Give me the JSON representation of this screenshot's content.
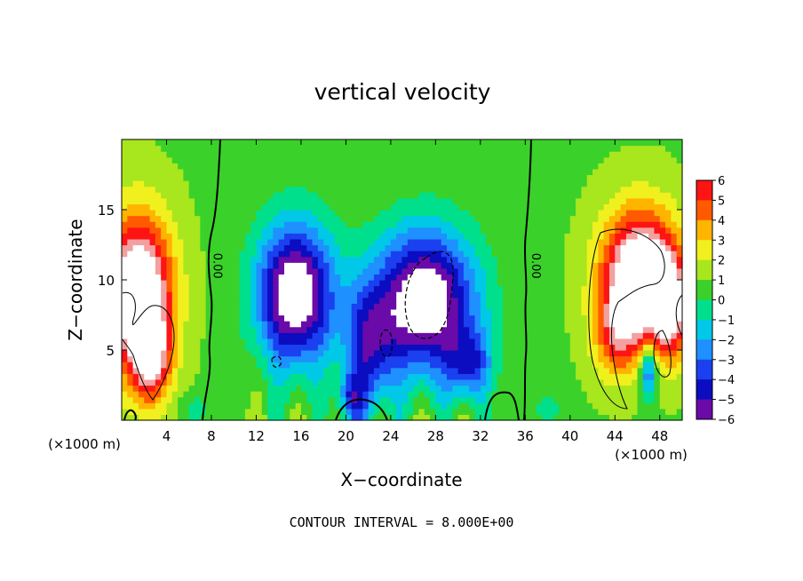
{
  "chart_data": {
    "type": "heatmap",
    "title": "vertical velocity",
    "xlabel": "X−coordinate",
    "ylabel": "Z−coordinate",
    "x_unit_left": "(×1000 m)",
    "x_unit_right": "(×1000 m)",
    "footer": "CONTOUR INTERVAL = 8.000E+00",
    "xlim": [
      0,
      50
    ],
    "ylim": [
      0,
      20
    ],
    "x_ticks": [
      {
        "value": 4,
        "label": "4"
      },
      {
        "value": 8,
        "label": "8"
      },
      {
        "value": 12,
        "label": "12"
      },
      {
        "value": 16,
        "label": "16"
      },
      {
        "value": 20,
        "label": "20"
      },
      {
        "value": 24,
        "label": "24"
      },
      {
        "value": 28,
        "label": "28"
      },
      {
        "value": 32,
        "label": "32"
      },
      {
        "value": 36,
        "label": "36"
      },
      {
        "value": 40,
        "label": "40"
      },
      {
        "value": 44,
        "label": "44"
      },
      {
        "value": 48,
        "label": "48"
      }
    ],
    "y_ticks": [
      {
        "value": 5,
        "label": "5"
      },
      {
        "value": 10,
        "label": "10"
      },
      {
        "value": 15,
        "label": "15"
      }
    ],
    "colorbar": {
      "min": -6,
      "max": 6,
      "tick_values": [
        6,
        5,
        4,
        3,
        2,
        1,
        0,
        -1,
        -2,
        -3,
        -4,
        -5,
        -6
      ],
      "tick_labels": [
        "6",
        "5",
        "4",
        "3",
        "2",
        "1",
        "0",
        "−1",
        "−2",
        "−3",
        "−4",
        "−5",
        "−6"
      ],
      "stops": [
        {
          "v": -6,
          "c": "#6a0aa8"
        },
        {
          "v": -5,
          "c": "#0c0cc0"
        },
        {
          "v": -4,
          "c": "#1a40f0"
        },
        {
          "v": -3,
          "c": "#1e90ff"
        },
        {
          "v": -2,
          "c": "#00c8e6"
        },
        {
          "v": -1,
          "c": "#00e08c"
        },
        {
          "v": 0,
          "c": "#3ad12a"
        },
        {
          "v": 1,
          "c": "#a8e61e"
        },
        {
          "v": 2,
          "c": "#f0f01e"
        },
        {
          "v": 3,
          "c": "#ffb400"
        },
        {
          "v": 4,
          "c": "#ff5a00"
        },
        {
          "v": 5,
          "c": "#ff1414"
        },
        {
          "v": 6,
          "c": "#f4a0a0"
        }
      ]
    },
    "contour_labels": [
      {
        "text": "0.00",
        "x": 8.2,
        "y": 11.0
      },
      {
        "text": "0.00",
        "x": 36.6,
        "y": 11.0
      }
    ],
    "features": [
      {
        "kind": "updraft",
        "x": 1.5,
        "z": 9.0,
        "sx": 3.0,
        "sz": 5.5,
        "amp": 9
      },
      {
        "kind": "updraft",
        "x": 2.6,
        "z": 4.5,
        "sx": 1.7,
        "sz": 3.2,
        "amp": 5
      },
      {
        "kind": "updraft",
        "x": 46.3,
        "z": 10.0,
        "sx": 3.4,
        "sz": 4.8,
        "amp": 9.5
      },
      {
        "kind": "updraft",
        "x": 44.0,
        "z": 6.0,
        "sx": 2.0,
        "sz": 3.0,
        "amp": 3
      },
      {
        "kind": "updraft",
        "x": 49.0,
        "z": 8.0,
        "sx": 1.5,
        "sz": 3.5,
        "amp": 5
      },
      {
        "kind": "downdraft",
        "x": 15.5,
        "z": 9.0,
        "sx": 3.4,
        "sz": 5.0,
        "amp": -8.5
      },
      {
        "kind": "downdraft",
        "x": 27.0,
        "z": 8.5,
        "sx": 4.5,
        "sz": 5.0,
        "amp": -8.5
      },
      {
        "kind": "downdraft",
        "x": 22.0,
        "z": 5.0,
        "sx": 2.2,
        "sz": 4.5,
        "amp": -4.5
      },
      {
        "kind": "downdraft",
        "x": 20.5,
        "z": 1.5,
        "sx": 1.2,
        "sz": 1.8,
        "amp": -3.5
      },
      {
        "kind": "downdraft",
        "x": 31.0,
        "z": 4.0,
        "sx": 2.0,
        "sz": 2.5,
        "amp": -4
      },
      {
        "kind": "downdraft",
        "x": 47.0,
        "z": 3.5,
        "sx": 0.8,
        "sz": 2.0,
        "amp": -5
      },
      {
        "kind": "downdraft",
        "x": 6.5,
        "z": 0.8,
        "sx": 1.2,
        "sz": 1.0,
        "amp": -1.5
      },
      {
        "kind": "downdraft",
        "x": 38.0,
        "z": 1.0,
        "sx": 1.0,
        "sz": 1.0,
        "amp": -1.8
      }
    ]
  }
}
